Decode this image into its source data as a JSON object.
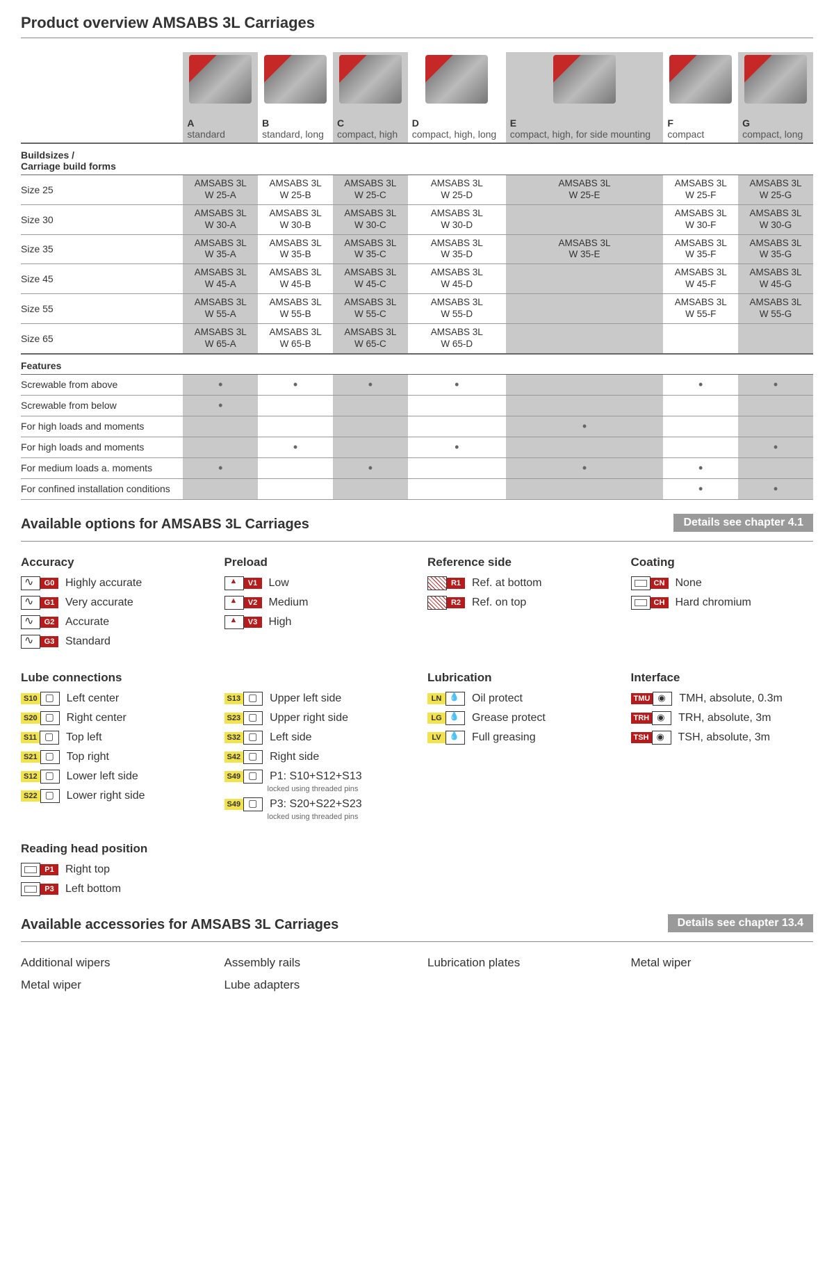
{
  "title": "Product overview AMSABS 3L Carriages",
  "columns": [
    {
      "letter": "A",
      "desc": "standard",
      "shade": true
    },
    {
      "letter": "B",
      "desc": "standard, long",
      "shade": false
    },
    {
      "letter": "C",
      "desc": "compact, high",
      "shade": true
    },
    {
      "letter": "D",
      "desc": "compact, high, long",
      "shade": false
    },
    {
      "letter": "E",
      "desc": "compact, high, for side mounting",
      "shade": true
    },
    {
      "letter": "F",
      "desc": "compact",
      "shade": false
    },
    {
      "letter": "G",
      "desc": "compact, long",
      "shade": true
    }
  ],
  "sizes_header": "Buildsizes /\nCarriage build forms",
  "sizes": [
    {
      "label": "Size 25",
      "cells": [
        "AMSABS 3L\nW 25-A",
        "AMSABS 3L\nW 25-B",
        "AMSABS 3L\nW 25-C",
        "AMSABS 3L\nW 25-D",
        "AMSABS 3L\nW 25-E",
        "AMSABS 3L\nW 25-F",
        "AMSABS 3L\nW 25-G"
      ]
    },
    {
      "label": "Size 30",
      "cells": [
        "AMSABS 3L\nW 30-A",
        "AMSABS 3L\nW 30-B",
        "AMSABS 3L\nW 30-C",
        "AMSABS 3L\nW 30-D",
        "",
        "AMSABS 3L\nW 30-F",
        "AMSABS 3L\nW 30-G"
      ]
    },
    {
      "label": "Size 35",
      "cells": [
        "AMSABS 3L\nW 35-A",
        "AMSABS 3L\nW 35-B",
        "AMSABS 3L\nW 35-C",
        "AMSABS 3L\nW 35-D",
        "AMSABS 3L\nW 35-E",
        "AMSABS 3L\nW 35-F",
        "AMSABS 3L\nW 35-G"
      ]
    },
    {
      "label": "Size 45",
      "cells": [
        "AMSABS 3L\nW 45-A",
        "AMSABS 3L\nW 45-B",
        "AMSABS 3L\nW 45-C",
        "AMSABS 3L\nW 45-D",
        "",
        "AMSABS 3L\nW 45-F",
        "AMSABS 3L\nW 45-G"
      ]
    },
    {
      "label": "Size 55",
      "cells": [
        "AMSABS 3L\nW 55-A",
        "AMSABS 3L\nW 55-B",
        "AMSABS 3L\nW 55-C",
        "AMSABS 3L\nW 55-D",
        "",
        "AMSABS 3L\nW 55-F",
        "AMSABS 3L\nW 55-G"
      ]
    },
    {
      "label": "Size 65",
      "cells": [
        "AMSABS 3L\nW 65-A",
        "AMSABS 3L\nW 65-B",
        "AMSABS 3L\nW 65-C",
        "AMSABS 3L\nW 65-D",
        "",
        "",
        ""
      ]
    }
  ],
  "features_header": "Features",
  "features": [
    {
      "label": "Screwable from above",
      "dots": [
        true,
        true,
        true,
        true,
        false,
        true,
        true
      ]
    },
    {
      "label": "Screwable from below",
      "dots": [
        true,
        false,
        false,
        false,
        false,
        false,
        false
      ]
    },
    {
      "label": "For high loads and moments",
      "dots": [
        false,
        false,
        false,
        false,
        true,
        false,
        false
      ]
    },
    {
      "label": "For high loads and moments",
      "dots": [
        false,
        true,
        false,
        true,
        false,
        false,
        true
      ]
    },
    {
      "label": "For medium loads a. moments",
      "dots": [
        true,
        false,
        true,
        false,
        true,
        true,
        false
      ]
    },
    {
      "label": "For confined installation conditions",
      "dots": [
        false,
        false,
        false,
        false,
        false,
        true,
        true
      ]
    }
  ],
  "options_title": "Available options for AMSABS 3L Carriages",
  "options_chapter": "Details see chapter  4.1",
  "opt_groups_row1": [
    {
      "title": "Accuracy",
      "items": [
        {
          "icon": "wave",
          "badge": "G0",
          "bcolor": "red",
          "label": "Highly accurate"
        },
        {
          "icon": "wave",
          "badge": "G1",
          "bcolor": "red",
          "label": "Very accurate"
        },
        {
          "icon": "wave",
          "badge": "G2",
          "bcolor": "red",
          "label": "Accurate"
        },
        {
          "icon": "wave",
          "badge": "G3",
          "bcolor": "red",
          "label": "Standard"
        }
      ]
    },
    {
      "title": "Preload",
      "items": [
        {
          "icon": "tri",
          "badge": "V1",
          "bcolor": "red",
          "label": "Low"
        },
        {
          "icon": "tri",
          "badge": "V2",
          "bcolor": "red",
          "label": "Medium"
        },
        {
          "icon": "tri",
          "badge": "V3",
          "bcolor": "red",
          "label": "High"
        }
      ]
    },
    {
      "title": "Reference side",
      "items": [
        {
          "icon": "hatch",
          "badge": "R1",
          "bcolor": "red",
          "label": "Ref. at bottom"
        },
        {
          "icon": "hatch",
          "badge": "R2",
          "bcolor": "red",
          "label": "Ref. on top"
        }
      ]
    },
    {
      "title": "Coating",
      "items": [
        {
          "icon": "box",
          "badge": "CN",
          "bcolor": "red",
          "label": "None"
        },
        {
          "icon": "box",
          "badge": "CH",
          "bcolor": "red",
          "label": "Hard chromium"
        }
      ]
    }
  ],
  "opt_groups_row2": [
    {
      "title": "Lube connections",
      "items": [
        {
          "icon": "lube",
          "badge": "S10",
          "bcolor": "yellow",
          "label": "Left center"
        },
        {
          "icon": "lube",
          "badge": "S20",
          "bcolor": "yellow",
          "label": "Right center"
        },
        {
          "icon": "lube",
          "badge": "S11",
          "bcolor": "yellow",
          "label": "Top left"
        },
        {
          "icon": "lube",
          "badge": "S21",
          "bcolor": "yellow",
          "label": "Top right"
        },
        {
          "icon": "lube",
          "badge": "S12",
          "bcolor": "yellow",
          "label": "Lower left side"
        },
        {
          "icon": "lube",
          "badge": "S22",
          "bcolor": "yellow",
          "label": "Lower right side"
        }
      ]
    },
    {
      "title": "",
      "items": [
        {
          "icon": "lube",
          "badge": "S13",
          "bcolor": "yellow",
          "label": "Upper left side"
        },
        {
          "icon": "lube",
          "badge": "S23",
          "bcolor": "yellow",
          "label": "Upper right side"
        },
        {
          "icon": "lube",
          "badge": "S32",
          "bcolor": "yellow",
          "label": "Left side"
        },
        {
          "icon": "lube",
          "badge": "S42",
          "bcolor": "yellow",
          "label": "Right side"
        },
        {
          "icon": "lube",
          "badge": "S49",
          "bcolor": "yellow",
          "label": "P1: S10+S12+S13",
          "note": "locked using threaded pins"
        },
        {
          "icon": "lube",
          "badge": "S49",
          "bcolor": "yellow",
          "label": "P3: S20+S22+S23",
          "note": "locked using threaded pins"
        }
      ]
    },
    {
      "title": "Lubrication",
      "items": [
        {
          "icon": "drop",
          "badge": "LN",
          "bcolor": "yellow",
          "label": "Oil protect"
        },
        {
          "icon": "drop",
          "badge": "LG",
          "bcolor": "yellow",
          "label": "Grease protect"
        },
        {
          "icon": "drop",
          "badge": "LV",
          "bcolor": "yellow",
          "label": "Full greasing"
        }
      ]
    },
    {
      "title": "Interface",
      "items": [
        {
          "icon": "plug",
          "badge": "TMU",
          "bcolor": "red",
          "label": "TMH, absolute, 0.3m"
        },
        {
          "icon": "plug",
          "badge": "TRH",
          "bcolor": "red",
          "label": "TRH, absolute, 3m"
        },
        {
          "icon": "plug",
          "badge": "TSH",
          "bcolor": "red",
          "label": "TSH, absolute, 3m"
        }
      ]
    }
  ],
  "reading_head": {
    "title": "Reading head position",
    "items": [
      {
        "icon": "box",
        "badge": "P1",
        "bcolor": "red",
        "label": "Right top"
      },
      {
        "icon": "box",
        "badge": "P3",
        "bcolor": "red",
        "label": "Left bottom"
      }
    ]
  },
  "accessories_title": "Available accessories for AMSABS 3L Carriages",
  "accessories_chapter": "Details see chapter  13.4",
  "accessories": [
    "Additional wipers",
    "Assembly rails",
    "Lubrication plates",
    "Metal wiper",
    "Metal wiper",
    "Lube adapters"
  ]
}
